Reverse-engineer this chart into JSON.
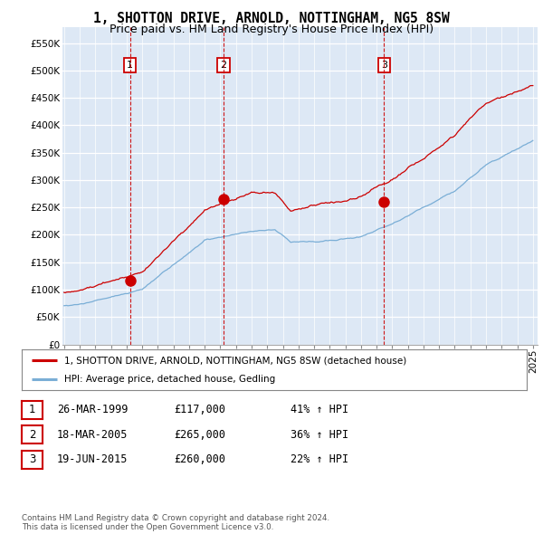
{
  "title": "1, SHOTTON DRIVE, ARNOLD, NOTTINGHAM, NG5 8SW",
  "subtitle": "Price paid vs. HM Land Registry's House Price Index (HPI)",
  "title_fontsize": 10.5,
  "subtitle_fontsize": 9,
  "ylabel_ticks": [
    "£0",
    "£50K",
    "£100K",
    "£150K",
    "£200K",
    "£250K",
    "£300K",
    "£350K",
    "£400K",
    "£450K",
    "£500K",
    "£550K"
  ],
  "ytick_values": [
    0,
    50000,
    100000,
    150000,
    200000,
    250000,
    300000,
    350000,
    400000,
    450000,
    500000,
    550000
  ],
  "ylim": [
    0,
    580000
  ],
  "x_start_year": 1995,
  "x_end_year": 2025,
  "sale_points": [
    {
      "label": "1",
      "year": 1999.23,
      "price": 117000
    },
    {
      "label": "2",
      "year": 2005.21,
      "price": 265000
    },
    {
      "label": "3",
      "year": 2015.47,
      "price": 260000
    }
  ],
  "red_line_color": "#cc0000",
  "blue_line_color": "#7aaed6",
  "background_color": "#ffffff",
  "chart_bg_color": "#dde8f5",
  "grid_color": "#ffffff",
  "legend_label_red": "1, SHOTTON DRIVE, ARNOLD, NOTTINGHAM, NG5 8SW (detached house)",
  "legend_label_blue": "HPI: Average price, detached house, Gedling",
  "table_entries": [
    {
      "num": "1",
      "date": "26-MAR-1999",
      "price": "£117,000",
      "change": "41% ↑ HPI"
    },
    {
      "num": "2",
      "date": "18-MAR-2005",
      "price": "£265,000",
      "change": "36% ↑ HPI"
    },
    {
      "num": "3",
      "date": "19-JUN-2015",
      "price": "£260,000",
      "change": "22% ↑ HPI"
    }
  ],
  "footnote": "Contains HM Land Registry data © Crown copyright and database right 2024.\nThis data is licensed under the Open Government Licence v3.0."
}
